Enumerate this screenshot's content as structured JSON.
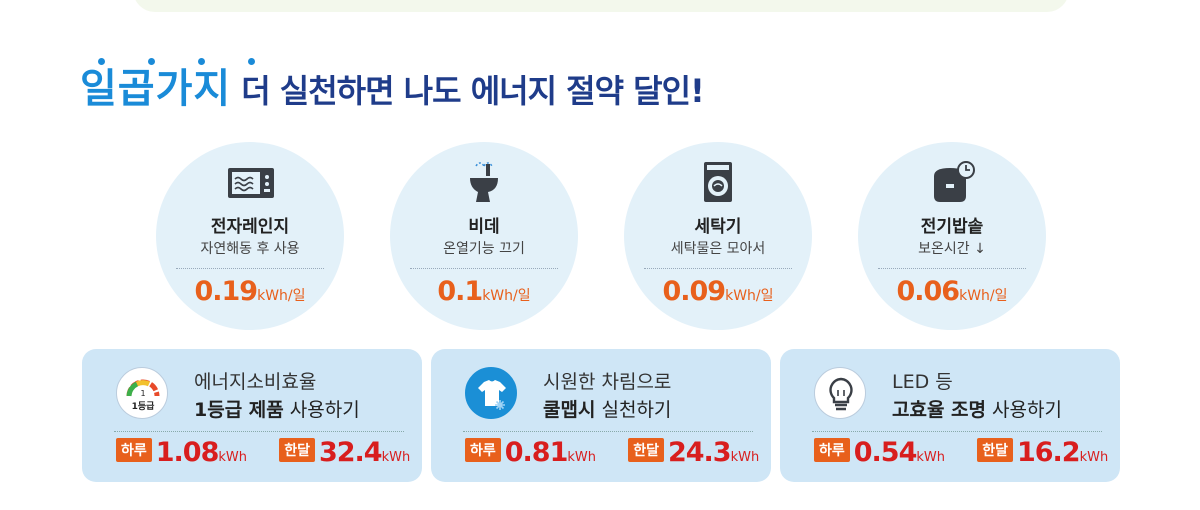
{
  "headline": {
    "accent": "일곱가지",
    "rest": "더 실천하면 나도 에너지 절약 달인!"
  },
  "tips": [
    {
      "icon": "microwave-icon",
      "title": "전자레인지",
      "subtitle": "자연해동 후 사용",
      "value": "0.19",
      "unit": "kWh/일"
    },
    {
      "icon": "bidet-icon",
      "title": "비데",
      "subtitle": "온열기능 끄기",
      "value": "0.1",
      "unit": "kWh/일"
    },
    {
      "icon": "washing-machine-icon",
      "title": "세탁기",
      "subtitle": "세탁물은 모아서",
      "value": "0.09",
      "unit": "kWh/일"
    },
    {
      "icon": "rice-cooker-icon",
      "title": "전기밥솥",
      "subtitle": "보온시간 ↓",
      "value": "0.06",
      "unit": "kWh/일"
    }
  ],
  "cards": [
    {
      "icon": "efficiency-gauge-icon",
      "icon_label": "1등급",
      "gauge_number": "1",
      "line1": "에너지소비효율",
      "line2_bold": "1등급 제품",
      "line2_rest": " 사용하기",
      "day_label": "하루",
      "day_value": "1.08",
      "day_unit": "kWh",
      "month_label": "한달",
      "month_value": "32.4",
      "month_unit": "kWh"
    },
    {
      "icon": "cool-shirt-icon",
      "line1": "시원한 차림으로",
      "line2_bold": "쿨맵시",
      "line2_rest": " 실천하기",
      "day_label": "하루",
      "day_value": "0.81",
      "day_unit": "kWh",
      "month_label": "한달",
      "month_value": "24.3",
      "month_unit": "kWh"
    },
    {
      "icon": "led-bulb-icon",
      "line1": "LED 등",
      "line2_bold": "고효율 조명",
      "line2_rest": " 사용하기",
      "day_label": "하루",
      "day_value": "0.54",
      "day_unit": "kWh",
      "month_label": "한달",
      "month_value": "16.2",
      "month_unit": "kWh"
    }
  ],
  "colors": {
    "accent_blue": "#1a8bd8",
    "headline_navy": "#1f3c8a",
    "value_orange": "#e8601c",
    "stat_red": "#d81e1e",
    "circle_bg": "#e3f1f9",
    "card_bg": "#cfe6f6"
  }
}
